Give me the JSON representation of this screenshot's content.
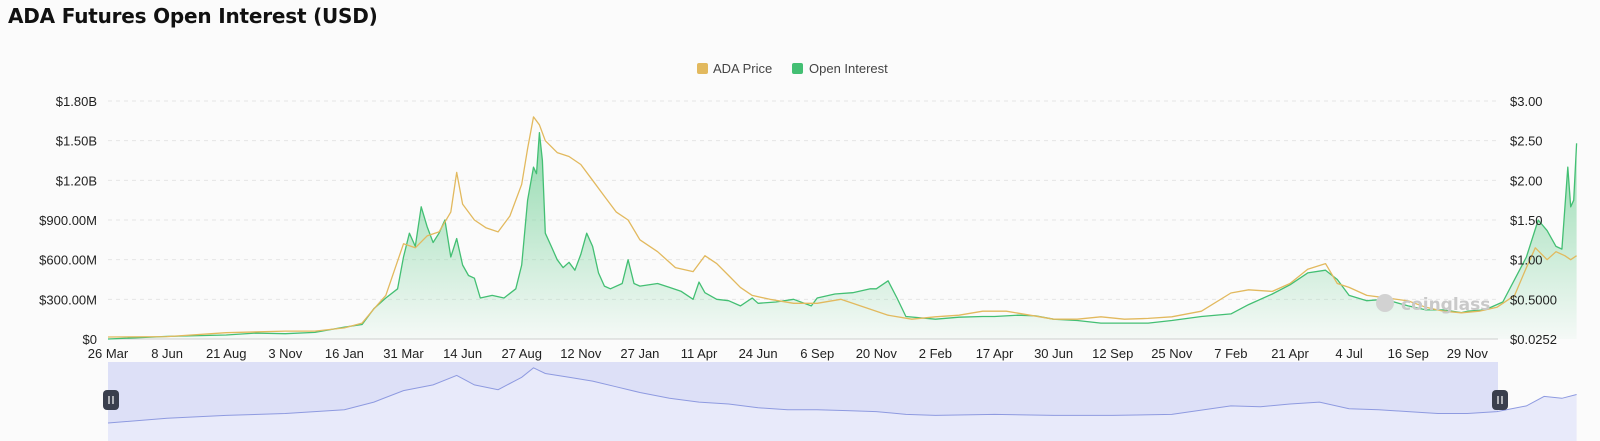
{
  "page": {
    "title": "ADA Futures Open Interest (USD)"
  },
  "watermark": {
    "text": "coinglass"
  },
  "colors": {
    "price": "#e2b95e",
    "oi_line": "#43bf73",
    "oi_fill_top": "#7fd4a0",
    "navigator_fill": "#dde0f7",
    "navigator_line": "#8e9ae0",
    "handle": "#3a3f4d"
  },
  "chart_data": {
    "type": "line",
    "title": "ADA Futures Open Interest (USD)",
    "legend": [
      "ADA Price",
      "Open Interest"
    ],
    "legend_position": "top-center",
    "grid": true,
    "x_tick_labels": [
      "26 Mar",
      "8 Jun",
      "21 Aug",
      "3 Nov",
      "16 Jan",
      "31 Mar",
      "14 Jun",
      "27 Aug",
      "12 Nov",
      "27 Jan",
      "11 Apr",
      "24 Jun",
      "6 Sep",
      "20 Nov",
      "2 Feb",
      "17 Apr",
      "30 Jun",
      "12 Sep",
      "25 Nov",
      "7 Feb",
      "21 Apr",
      "4 Jul",
      "16 Sep",
      "29 Nov"
    ],
    "y_left": {
      "label": "Open Interest",
      "ticks": [
        "$0",
        "$300.00M",
        "$600.00M",
        "$900.00M",
        "$1.20B",
        "$1.50B",
        "$1.80B"
      ],
      "range": [
        0,
        1800
      ]
    },
    "y_right": {
      "label": "ADA Price",
      "ticks": [
        "$0.0252",
        "$0.5000",
        "$1.00",
        "$1.50",
        "$2.00",
        "$2.50",
        "$3.00"
      ],
      "range": [
        0,
        3
      ]
    },
    "series": [
      {
        "name": "Open Interest",
        "unit": "M USD",
        "axis": "left",
        "points": [
          [
            0,
            0
          ],
          [
            1,
            20
          ],
          [
            2,
            30
          ],
          [
            2.5,
            45
          ],
          [
            3,
            40
          ],
          [
            3.5,
            50
          ],
          [
            4,
            90
          ],
          [
            4.3,
            110
          ],
          [
            4.5,
            230
          ],
          [
            4.7,
            310
          ],
          [
            4.9,
            380
          ],
          [
            5.0,
            620
          ],
          [
            5.1,
            800
          ],
          [
            5.2,
            700
          ],
          [
            5.3,
            1000
          ],
          [
            5.4,
            850
          ],
          [
            5.5,
            730
          ],
          [
            5.6,
            800
          ],
          [
            5.7,
            900
          ],
          [
            5.8,
            620
          ],
          [
            5.9,
            760
          ],
          [
            6.0,
            560
          ],
          [
            6.1,
            480
          ],
          [
            6.2,
            460
          ],
          [
            6.3,
            310
          ],
          [
            6.5,
            330
          ],
          [
            6.7,
            310
          ],
          [
            6.9,
            380
          ],
          [
            7.0,
            560
          ],
          [
            7.1,
            1050
          ],
          [
            7.2,
            1300
          ],
          [
            7.25,
            1250
          ],
          [
            7.3,
            1560
          ],
          [
            7.35,
            1350
          ],
          [
            7.4,
            800
          ],
          [
            7.5,
            700
          ],
          [
            7.6,
            600
          ],
          [
            7.7,
            540
          ],
          [
            7.8,
            580
          ],
          [
            7.9,
            520
          ],
          [
            8.0,
            640
          ],
          [
            8.1,
            800
          ],
          [
            8.2,
            700
          ],
          [
            8.3,
            500
          ],
          [
            8.4,
            400
          ],
          [
            8.5,
            380
          ],
          [
            8.7,
            420
          ],
          [
            8.8,
            600
          ],
          [
            8.9,
            420
          ],
          [
            9.0,
            400
          ],
          [
            9.3,
            420
          ],
          [
            9.5,
            390
          ],
          [
            9.7,
            360
          ],
          [
            9.9,
            300
          ],
          [
            10.0,
            430
          ],
          [
            10.1,
            350
          ],
          [
            10.3,
            300
          ],
          [
            10.5,
            290
          ],
          [
            10.7,
            250
          ],
          [
            10.9,
            310
          ],
          [
            11.0,
            270
          ],
          [
            11.3,
            280
          ],
          [
            11.6,
            300
          ],
          [
            11.9,
            250
          ],
          [
            12.0,
            310
          ],
          [
            12.3,
            340
          ],
          [
            12.6,
            350
          ],
          [
            12.9,
            380
          ],
          [
            13.0,
            380
          ],
          [
            13.2,
            440
          ],
          [
            13.35,
            310
          ],
          [
            13.5,
            170
          ],
          [
            14.0,
            150
          ],
          [
            14.4,
            165
          ],
          [
            14.8,
            170
          ],
          [
            15.0,
            170
          ],
          [
            15.4,
            180
          ],
          [
            15.7,
            175
          ],
          [
            16.0,
            150
          ],
          [
            16.4,
            140
          ],
          [
            16.8,
            120
          ],
          [
            17.2,
            120
          ],
          [
            17.6,
            120
          ],
          [
            18.0,
            140
          ],
          [
            18.5,
            170
          ],
          [
            19.0,
            190
          ],
          [
            19.3,
            260
          ],
          [
            19.7,
            340
          ],
          [
            20.0,
            410
          ],
          [
            20.3,
            500
          ],
          [
            20.6,
            520
          ],
          [
            20.8,
            450
          ],
          [
            21.0,
            330
          ],
          [
            21.3,
            290
          ],
          [
            21.6,
            300
          ],
          [
            22.0,
            250
          ],
          [
            22.3,
            220
          ],
          [
            22.6,
            220
          ],
          [
            22.9,
            200
          ],
          [
            23.0,
            210
          ],
          [
            23.3,
            220
          ],
          [
            23.6,
            280
          ],
          [
            24.0,
            620
          ],
          [
            24.2,
            900
          ],
          [
            24.35,
            820
          ],
          [
            24.5,
            700
          ],
          [
            24.6,
            680
          ],
          [
            24.7,
            1300
          ],
          [
            24.75,
            1000
          ],
          [
            24.8,
            1050
          ],
          [
            24.85,
            1480
          ]
        ]
      },
      {
        "name": "ADA Price",
        "unit": "USD",
        "axis": "right",
        "points": [
          [
            0,
            0.025
          ],
          [
            1,
            0.03
          ],
          [
            2,
            0.08
          ],
          [
            3,
            0.1
          ],
          [
            3.5,
            0.1
          ],
          [
            4,
            0.14
          ],
          [
            4.3,
            0.2
          ],
          [
            4.5,
            0.38
          ],
          [
            4.7,
            0.55
          ],
          [
            5.0,
            1.2
          ],
          [
            5.2,
            1.15
          ],
          [
            5.4,
            1.3
          ],
          [
            5.6,
            1.35
          ],
          [
            5.8,
            1.6
          ],
          [
            5.9,
            2.1
          ],
          [
            6.0,
            1.7
          ],
          [
            6.2,
            1.5
          ],
          [
            6.4,
            1.4
          ],
          [
            6.6,
            1.35
          ],
          [
            6.8,
            1.55
          ],
          [
            7.0,
            1.95
          ],
          [
            7.1,
            2.4
          ],
          [
            7.2,
            2.8
          ],
          [
            7.3,
            2.7
          ],
          [
            7.4,
            2.5
          ],
          [
            7.6,
            2.35
          ],
          [
            7.8,
            2.3
          ],
          [
            8.0,
            2.2
          ],
          [
            8.2,
            2.0
          ],
          [
            8.4,
            1.8
          ],
          [
            8.6,
            1.6
          ],
          [
            8.8,
            1.5
          ],
          [
            9.0,
            1.25
          ],
          [
            9.3,
            1.1
          ],
          [
            9.6,
            0.9
          ],
          [
            9.9,
            0.85
          ],
          [
            10.1,
            1.05
          ],
          [
            10.3,
            0.95
          ],
          [
            10.5,
            0.8
          ],
          [
            10.7,
            0.65
          ],
          [
            10.9,
            0.55
          ],
          [
            11.2,
            0.5
          ],
          [
            11.6,
            0.45
          ],
          [
            12.0,
            0.45
          ],
          [
            12.4,
            0.5
          ],
          [
            12.8,
            0.4
          ],
          [
            13.2,
            0.3
          ],
          [
            13.6,
            0.25
          ],
          [
            14.0,
            0.28
          ],
          [
            14.4,
            0.3
          ],
          [
            14.8,
            0.35
          ],
          [
            15.2,
            0.35
          ],
          [
            15.6,
            0.3
          ],
          [
            16.0,
            0.25
          ],
          [
            16.4,
            0.25
          ],
          [
            16.8,
            0.28
          ],
          [
            17.2,
            0.25
          ],
          [
            17.6,
            0.26
          ],
          [
            18.0,
            0.28
          ],
          [
            18.5,
            0.35
          ],
          [
            19.0,
            0.58
          ],
          [
            19.3,
            0.62
          ],
          [
            19.7,
            0.6
          ],
          [
            20.0,
            0.7
          ],
          [
            20.3,
            0.88
          ],
          [
            20.6,
            0.95
          ],
          [
            20.8,
            0.7
          ],
          [
            21.0,
            0.65
          ],
          [
            21.3,
            0.55
          ],
          [
            21.6,
            0.52
          ],
          [
            22.0,
            0.48
          ],
          [
            22.3,
            0.4
          ],
          [
            22.6,
            0.35
          ],
          [
            22.9,
            0.33
          ],
          [
            23.2,
            0.35
          ],
          [
            23.5,
            0.4
          ],
          [
            23.8,
            0.55
          ],
          [
            24.0,
            0.9
          ],
          [
            24.15,
            1.15
          ],
          [
            24.35,
            1.0
          ],
          [
            24.5,
            1.1
          ],
          [
            24.65,
            1.05
          ],
          [
            24.75,
            1.0
          ],
          [
            24.85,
            1.05
          ]
        ]
      }
    ],
    "navigator": {
      "type": "area",
      "points": [
        [
          0,
          0
        ],
        [
          1,
          5
        ],
        [
          2,
          8
        ],
        [
          3,
          10
        ],
        [
          4,
          14
        ],
        [
          4.5,
          22
        ],
        [
          5.0,
          34
        ],
        [
          5.5,
          40
        ],
        [
          5.9,
          50
        ],
        [
          6.2,
          40
        ],
        [
          6.6,
          35
        ],
        [
          7.0,
          48
        ],
        [
          7.2,
          58
        ],
        [
          7.4,
          52
        ],
        [
          7.8,
          48
        ],
        [
          8.2,
          44
        ],
        [
          8.6,
          38
        ],
        [
          9.0,
          32
        ],
        [
          9.5,
          26
        ],
        [
          10.0,
          22
        ],
        [
          10.5,
          20
        ],
        [
          11.0,
          16
        ],
        [
          11.5,
          14
        ],
        [
          12.0,
          14
        ],
        [
          12.5,
          13
        ],
        [
          13.0,
          12
        ],
        [
          13.5,
          9
        ],
        [
          14.0,
          8
        ],
        [
          15.0,
          9
        ],
        [
          16.0,
          8
        ],
        [
          17.0,
          8
        ],
        [
          18.0,
          9
        ],
        [
          19.0,
          18
        ],
        [
          19.5,
          17
        ],
        [
          20.0,
          20
        ],
        [
          20.5,
          22
        ],
        [
          21.0,
          15
        ],
        [
          21.5,
          14
        ],
        [
          22.0,
          12
        ],
        [
          22.5,
          10
        ],
        [
          23.0,
          10
        ],
        [
          23.5,
          12
        ],
        [
          24.0,
          18
        ],
        [
          24.3,
          28
        ],
        [
          24.6,
          26
        ],
        [
          24.85,
          30
        ]
      ]
    }
  }
}
